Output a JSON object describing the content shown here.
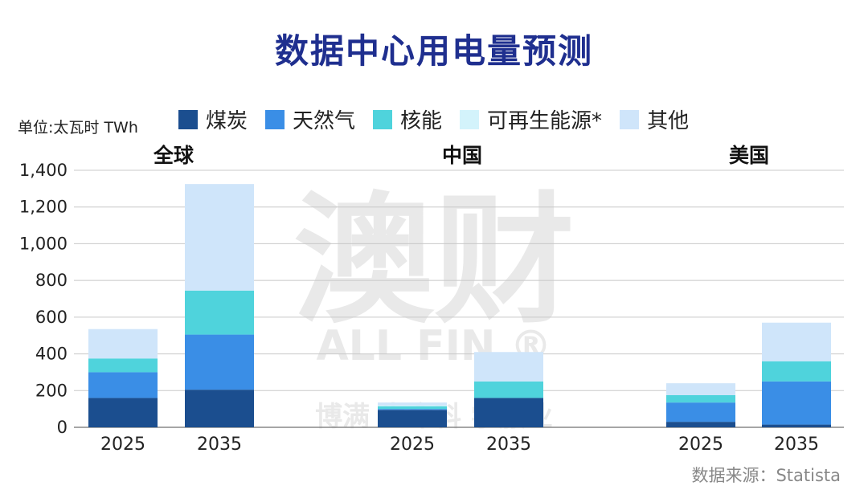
{
  "title": "数据中心用电量预测",
  "unit_label": "单位:太瓦时 TWh",
  "source": "数据来源：Statista",
  "watermark": {
    "main": "澳财",
    "sub": "ALL FIN ®",
    "line": "博满 生命科 学服业"
  },
  "legend": [
    {
      "label": "煤炭",
      "color": "#1b4e8f"
    },
    {
      "label": "天然气",
      "color": "#3a8ee6"
    },
    {
      "label": "核能",
      "color": "#4fd3dc"
    },
    {
      "label": "可再生能源*",
      "color": "#d3f3fb"
    },
    {
      "label": "其他",
      "color": "#cfe5fa"
    }
  ],
  "chart_data": {
    "type": "bar",
    "stacked": true,
    "ylim": [
      0,
      1400
    ],
    "yticks": [
      "0",
      "200",
      "400",
      "600",
      "800",
      "1,000",
      "1,200",
      "1,400"
    ],
    "grid": true,
    "legend_position": "top",
    "panels": [
      {
        "name": "全球",
        "categories": [
          "2025",
          "2035"
        ],
        "series": [
          {
            "name": "煤炭",
            "values": [
              160,
              205
            ]
          },
          {
            "name": "天然气",
            "values": [
              140,
              300
            ]
          },
          {
            "name": "核能",
            "values": [
              75,
              240
            ]
          },
          {
            "name": "可再生能源*",
            "values": [
              0,
              0
            ]
          },
          {
            "name": "其他",
            "values": [
              160,
              580
            ]
          }
        ]
      },
      {
        "name": "中国",
        "categories": [
          "2025",
          "2035"
        ],
        "series": [
          {
            "name": "煤炭",
            "values": [
              95,
              160
            ]
          },
          {
            "name": "天然气",
            "values": [
              5,
              0
            ]
          },
          {
            "name": "核能",
            "values": [
              15,
              90
            ]
          },
          {
            "name": "可再生能源*",
            "values": [
              5,
              0
            ]
          },
          {
            "name": "其他",
            "values": [
              15,
              160
            ]
          }
        ]
      },
      {
        "name": "美国",
        "categories": [
          "2025",
          "2035"
        ],
        "series": [
          {
            "name": "煤炭",
            "values": [
              30,
              15
            ]
          },
          {
            "name": "天然气",
            "values": [
              105,
              235
            ]
          },
          {
            "name": "核能",
            "values": [
              40,
              110
            ]
          },
          {
            "name": "可再生能源*",
            "values": [
              0,
              0
            ]
          },
          {
            "name": "其他",
            "values": [
              65,
              210
            ]
          }
        ]
      }
    ]
  }
}
